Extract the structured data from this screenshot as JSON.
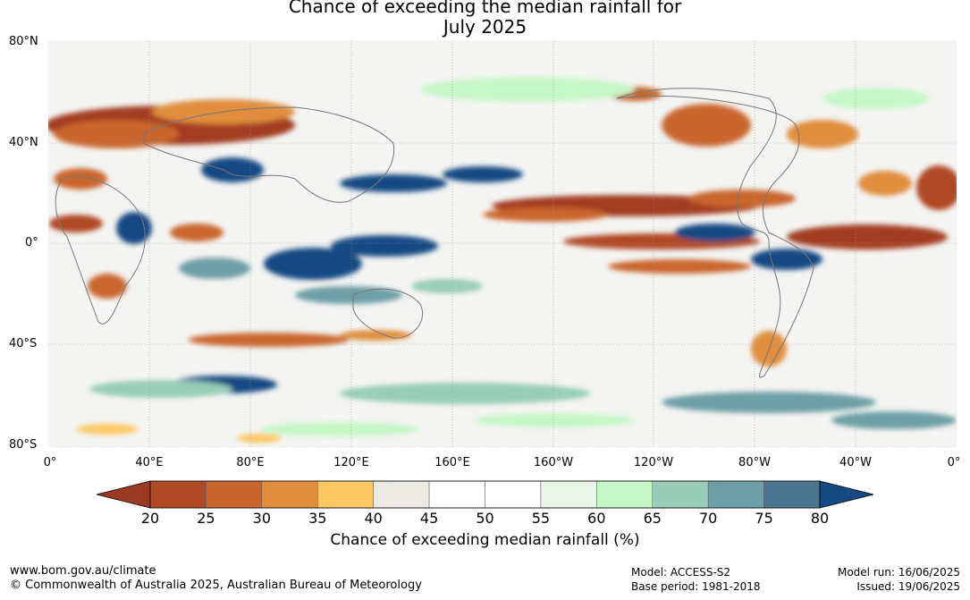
{
  "title": {
    "line1": "Chance of exceeding the median rainfall for",
    "line2": "July 2025"
  },
  "map": {
    "lat_labels": [
      "80°N",
      "40°N",
      "0°",
      "40°S",
      "80°S"
    ],
    "lon_labels": [
      "0°",
      "40°E",
      "80°E",
      "120°E",
      "160°E",
      "160°W",
      "120°W",
      "80°W",
      "40°W",
      "0°"
    ]
  },
  "colorbar": {
    "ticks": [
      "20",
      "25",
      "30",
      "35",
      "40",
      "45",
      "50",
      "55",
      "60",
      "65",
      "70",
      "75",
      "80"
    ],
    "colors": [
      "#9a3a22",
      "#b04a26",
      "#c9662f",
      "#e08e3e",
      "#fbc864",
      "#ebeae5",
      "#ffffff",
      "#ffffff",
      "#e8f6e7",
      "#c6f7c8",
      "#99cdb7",
      "#6e9fa6",
      "#4a7690",
      "#154a83"
    ],
    "label": "Chance of exceeding median rainfall (%)"
  },
  "footer": {
    "url": "www.bom.gov.au/climate",
    "copyright": "© Commonwealth of Australia 2025, Australian Bureau of Meteorology",
    "model": "Model: ACCESS-S2",
    "base_period": "Base period: 1981-2018",
    "model_run": "Model run: 16/06/2025",
    "issued": "Issued: 19/06/2025"
  }
}
